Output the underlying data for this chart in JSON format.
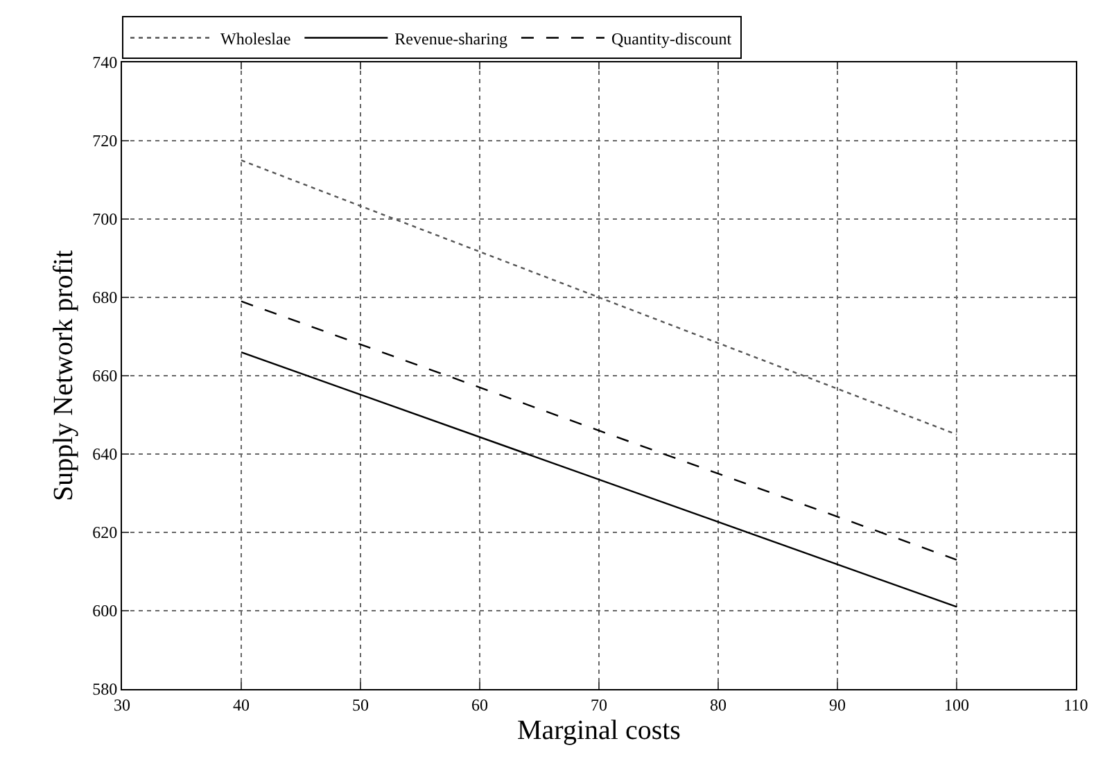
{
  "chart_data": {
    "type": "line",
    "xlabel": "Marginal costs",
    "ylabel": "Supply Network profit",
    "x": [
      40,
      100
    ],
    "series": [
      {
        "name": "Wholeslae",
        "color": "#555555",
        "values": [
          715,
          645
        ],
        "line_style": "dotted"
      },
      {
        "name": "Revenue-sharing",
        "color": "#000000",
        "values": [
          666,
          601
        ],
        "line_style": "solid"
      },
      {
        "name": "Quantity-discount",
        "color": "#000000",
        "values": [
          679,
          613
        ],
        "line_style": "dashed"
      }
    ],
    "xlim": [
      30,
      110
    ],
    "xticks": [
      30,
      40,
      50,
      60,
      70,
      80,
      90,
      100,
      110
    ],
    "ylim": [
      580,
      740
    ],
    "yticks": [
      580,
      600,
      620,
      640,
      660,
      680,
      700,
      720,
      740
    ],
    "grid": true,
    "legend": "top",
    "marker": "none"
  }
}
